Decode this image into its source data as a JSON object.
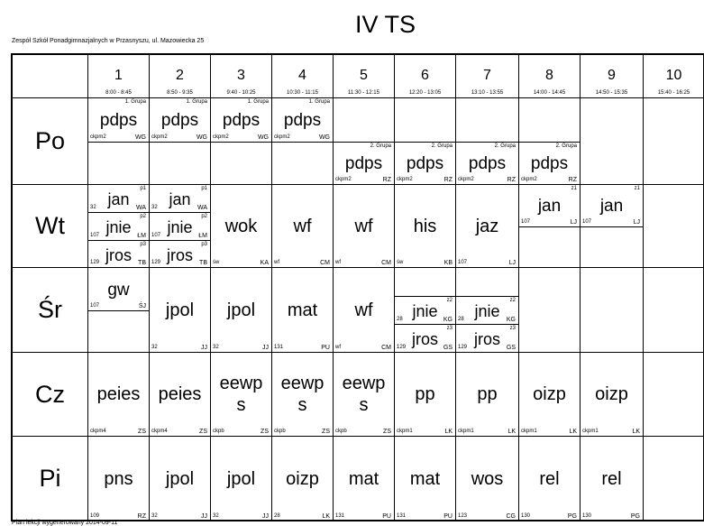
{
  "header": {
    "title": "IV TS",
    "school": "Zespół Szkół Ponadgimnazjalnych w Przasnyszu, ul. Mazowiecka 25"
  },
  "periods": [
    {
      "number": 1,
      "time": "8:00 - 8:45"
    },
    {
      "number": 2,
      "time": "8:50 - 9:35"
    },
    {
      "number": 3,
      "time": "9:40 - 10:25"
    },
    {
      "number": 4,
      "time": "10:30 - 11:15"
    },
    {
      "number": 5,
      "time": "11:30 - 12:15"
    },
    {
      "number": 6,
      "time": "12:20 - 13:05"
    },
    {
      "number": 7,
      "time": "13:10 - 13:55"
    },
    {
      "number": 8,
      "time": "14:00 - 14:45"
    },
    {
      "number": 9,
      "time": "14:50 - 15:35"
    },
    {
      "number": 10,
      "time": "15:40 - 16:25"
    }
  ],
  "days": [
    {
      "name": "Po",
      "lessons": [
        [
          {
            "group": "1. Grupa",
            "subject": "pdps",
            "room": "ckpm2",
            "teacher": "WG"
          },
          null
        ],
        [
          {
            "group": "1. Grupa",
            "subject": "pdps",
            "room": "ckpm2",
            "teacher": "WG"
          },
          null
        ],
        [
          {
            "group": "1. Grupa",
            "subject": "pdps",
            "room": "ckpm2",
            "teacher": "WG"
          },
          null
        ],
        [
          {
            "group": "1. Grupa",
            "subject": "pdps",
            "room": "ckpm2",
            "teacher": "WG"
          },
          null
        ],
        [
          null,
          {
            "group": "2. Grupa",
            "subject": "pdps",
            "room": "ckpm2",
            "teacher": "RZ"
          }
        ],
        [
          null,
          {
            "group": "2. Grupa",
            "subject": "pdps",
            "room": "ckpm2",
            "teacher": "RZ"
          }
        ],
        [
          null,
          {
            "group": "2. Grupa",
            "subject": "pdps",
            "room": "ckpm2",
            "teacher": "RZ"
          }
        ],
        [
          null,
          {
            "group": "2. Grupa",
            "subject": "pdps",
            "room": "ckpm2",
            "teacher": "RZ"
          }
        ],
        [],
        []
      ]
    },
    {
      "name": "Wt",
      "lessons": [
        [
          {
            "group": "p1",
            "subject": "jan",
            "room": "32",
            "teacher": "WA"
          },
          {
            "group": "p2",
            "subject": "jnie",
            "room": "107",
            "teacher": "ŁM"
          },
          {
            "group": "p3",
            "subject": "jros",
            "room": "129",
            "teacher": "TB"
          }
        ],
        [
          {
            "group": "p1",
            "subject": "jan",
            "room": "32",
            "teacher": "WA"
          },
          {
            "group": "p2",
            "subject": "jnie",
            "room": "107",
            "teacher": "ŁM"
          },
          {
            "group": "p3",
            "subject": "jros",
            "room": "129",
            "teacher": "TB"
          }
        ],
        [
          {
            "subject": "wok",
            "room": "św",
            "teacher": "KA"
          }
        ],
        [
          {
            "subject": "wf",
            "room": "wf",
            "teacher": "CM"
          }
        ],
        [
          {
            "subject": "wf",
            "room": "wf",
            "teacher": "CM"
          }
        ],
        [
          {
            "subject": "his",
            "room": "św",
            "teacher": "KB"
          }
        ],
        [
          {
            "subject": "jaz",
            "room": "107",
            "teacher": "LJ"
          }
        ],
        [
          {
            "group": "z1",
            "subject": "jan",
            "room": "107",
            "teacher": "LJ"
          },
          null
        ],
        [
          {
            "group": "z1",
            "subject": "jan",
            "room": "107",
            "teacher": "LJ"
          },
          null
        ],
        []
      ]
    },
    {
      "name": "Śr",
      "lessons": [
        [
          {
            "subject": "gw",
            "room": "107",
            "teacher": "ŚJ"
          },
          null
        ],
        [
          {
            "subject": "jpol",
            "room": "32",
            "teacher": "JJ"
          }
        ],
        [
          {
            "subject": "jpol",
            "room": "32",
            "teacher": "JJ"
          }
        ],
        [
          {
            "subject": "mat",
            "room": "131",
            "teacher": "PU"
          }
        ],
        [
          {
            "subject": "wf",
            "room": "wf",
            "teacher": "CM"
          }
        ],
        [
          null,
          {
            "group": "z2",
            "subject": "jnie",
            "room": "28",
            "teacher": "KG"
          },
          {
            "group": "z3",
            "subject": "jros",
            "room": "129",
            "teacher": "GS"
          }
        ],
        [
          null,
          {
            "group": "z2",
            "subject": "jnie",
            "room": "28",
            "teacher": "KG"
          },
          {
            "group": "z3",
            "subject": "jros",
            "room": "129",
            "teacher": "GS"
          }
        ],
        [],
        [],
        []
      ]
    },
    {
      "name": "Cz",
      "lessons": [
        [
          {
            "subject": "peies",
            "room": "ckpm4",
            "teacher": "ZS"
          }
        ],
        [
          {
            "subject": "peies",
            "room": "ckpm4",
            "teacher": "ZS"
          }
        ],
        [
          {
            "subject": "eewps",
            "room": "ckpb",
            "teacher": "ZS"
          }
        ],
        [
          {
            "subject": "eewps",
            "room": "ckpb",
            "teacher": "ZS"
          }
        ],
        [
          {
            "subject": "eewps",
            "room": "ckpb",
            "teacher": "ZS"
          }
        ],
        [
          {
            "subject": "pp",
            "room": "ckpm1",
            "teacher": "LK"
          }
        ],
        [
          {
            "subject": "pp",
            "room": "ckpm1",
            "teacher": "LK"
          }
        ],
        [
          {
            "subject": "oizp",
            "room": "ckpm1",
            "teacher": "LK"
          }
        ],
        [
          {
            "subject": "oizp",
            "room": "ckpm1",
            "teacher": "LK"
          }
        ],
        []
      ]
    },
    {
      "name": "Pi",
      "lessons": [
        [
          {
            "subject": "pns",
            "room": "109",
            "teacher": "RZ"
          }
        ],
        [
          {
            "subject": "jpol",
            "room": "32",
            "teacher": "JJ"
          }
        ],
        [
          {
            "subject": "jpol",
            "room": "32",
            "teacher": "JJ"
          }
        ],
        [
          {
            "subject": "oizp",
            "room": "28",
            "teacher": "LK"
          }
        ],
        [
          {
            "subject": "mat",
            "room": "131",
            "teacher": "PU"
          }
        ],
        [
          {
            "subject": "mat",
            "room": "131",
            "teacher": "PU"
          }
        ],
        [
          {
            "subject": "wos",
            "room": "123",
            "teacher": "CG"
          }
        ],
        [
          {
            "subject": "rel",
            "room": "130",
            "teacher": "PG"
          }
        ],
        [
          {
            "subject": "rel",
            "room": "130",
            "teacher": "PG"
          }
        ],
        []
      ]
    }
  ],
  "footer": "Plan lekcji wygenerowany 2014-09-11"
}
